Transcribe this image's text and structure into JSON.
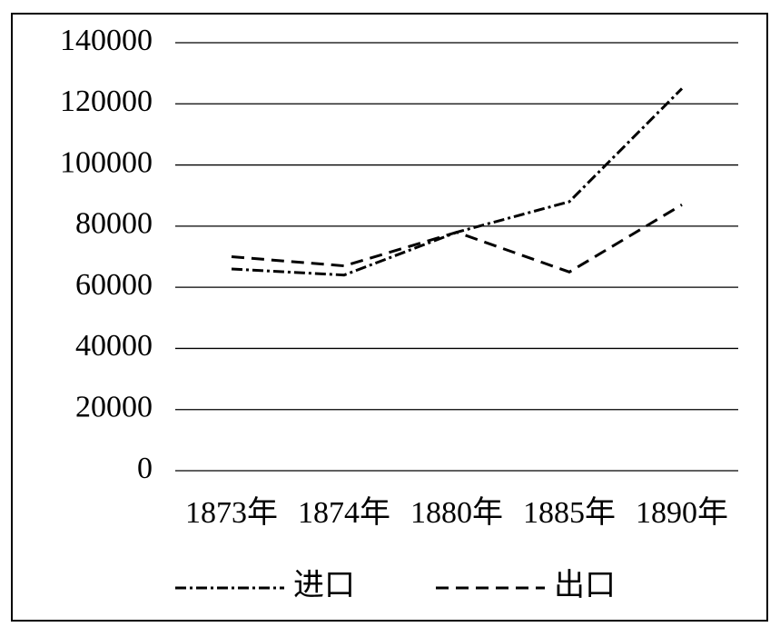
{
  "chart_data": {
    "type": "line",
    "categories": [
      "1873年",
      "1874年",
      "1880年",
      "1885年",
      "1890年"
    ],
    "series": [
      {
        "name": "进口",
        "color": "#000000",
        "dash": "dash-dot",
        "values": [
          66000,
          64000,
          78000,
          88000,
          125000
        ]
      },
      {
        "name": "出口",
        "color": "#000000",
        "dash": "dashed",
        "values": [
          70000,
          67000,
          78000,
          65000,
          87000
        ]
      }
    ],
    "ylim": [
      0,
      140000
    ],
    "yticks": [
      0,
      20000,
      40000,
      60000,
      80000,
      100000,
      120000,
      140000
    ],
    "grid": true,
    "legend": "bottom"
  }
}
